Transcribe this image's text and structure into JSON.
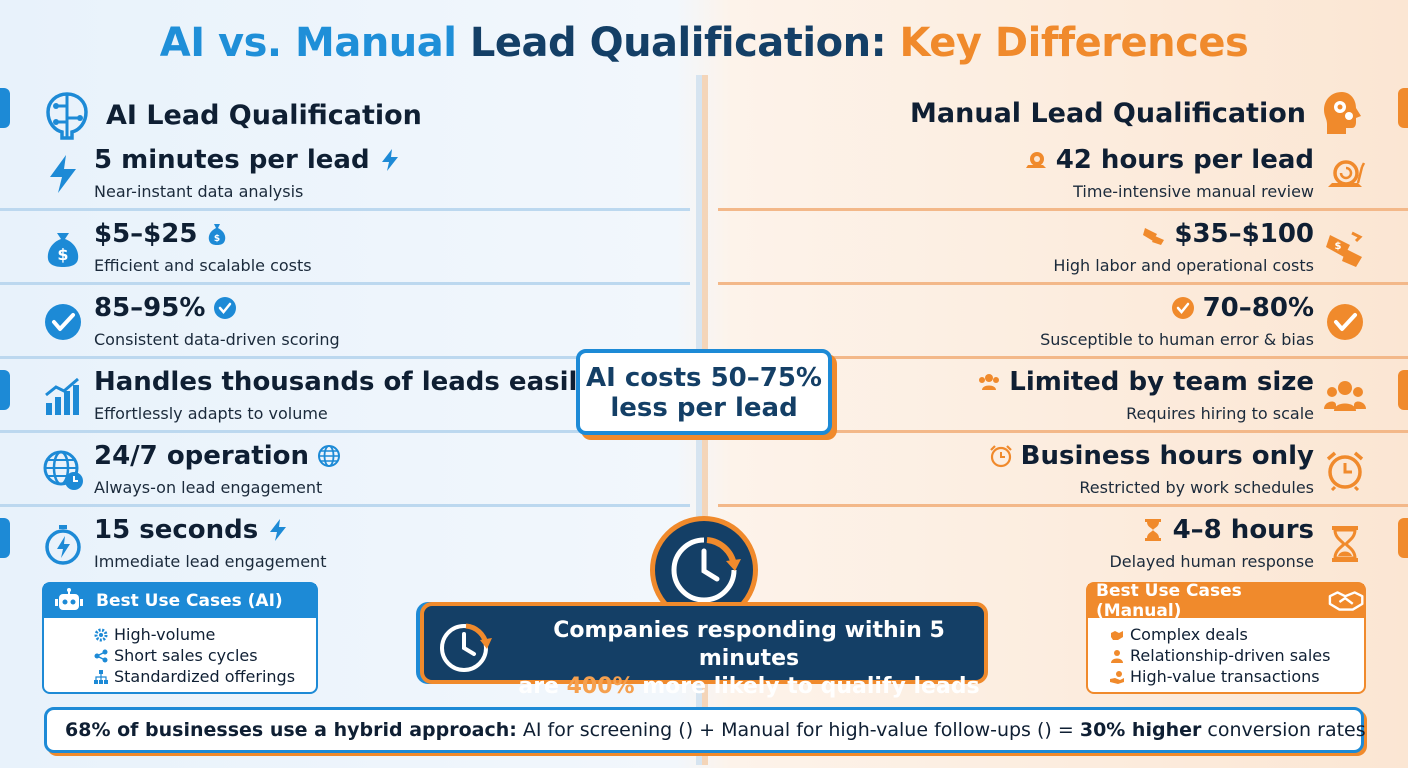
{
  "title": {
    "part1": "AI vs. Manual ",
    "part2": "Lead Qualification: ",
    "part3": "Key Differences"
  },
  "ai": {
    "heading": "AI Lead Qualification",
    "rows": [
      {
        "main": "5 minutes per lead",
        "sub": "Near-instant data analysis",
        "icon": "lightning-icon"
      },
      {
        "main": "$5–$25",
        "sub": "Efficient and scalable costs",
        "icon": "money-bag-icon"
      },
      {
        "main": "85–95%",
        "sub": "Consistent data-driven scoring",
        "icon": "check-circle-icon"
      },
      {
        "main": "Handles thousands of leads easily",
        "sub": "Effortlessly adapts to volume",
        "icon": "bar-chart-icon"
      },
      {
        "main": "24/7 operation",
        "sub": "Always-on lead engagement",
        "icon": "globe-clock-icon"
      },
      {
        "main": "15 seconds",
        "sub": "Immediate lead engagement",
        "icon": "stopwatch-icon"
      }
    ],
    "use_cases": {
      "title": "Best Use Cases (AI)",
      "items": [
        "High-volume",
        "Short sales cycles",
        "Standardized offerings"
      ]
    }
  },
  "manual": {
    "heading": "Manual Lead Qualification",
    "rows": [
      {
        "main": "42 hours per lead",
        "sub": "Time-intensive manual review",
        "icon": "snail-icon"
      },
      {
        "main": "$35–$100",
        "sub": "High labor and operational costs",
        "icon": "money-flying-icon"
      },
      {
        "main": "70–80%",
        "sub": "Susceptible to human error & bias",
        "icon": "check-circle-icon"
      },
      {
        "main": "Limited by team size",
        "sub": "Requires hiring to scale",
        "icon": "team-icon"
      },
      {
        "main": "Business hours only",
        "sub": "Restricted by work schedules",
        "icon": "alarm-clock-icon"
      },
      {
        "main": "4–8 hours",
        "sub": "Delayed human response",
        "icon": "hourglass-icon"
      }
    ],
    "use_cases": {
      "title": "Best Use Cases (Manual)",
      "items": [
        "Complex deals",
        "Relationship-driven sales",
        "High-value transactions"
      ]
    }
  },
  "callout": {
    "line1": "AI costs 50–75%",
    "line2": "less per lead"
  },
  "banner": {
    "line1": "Companies responding within 5 minutes",
    "line2_pre": "are ",
    "line2_hl": "400%",
    "line2_post": " more likely to qualify leads"
  },
  "footer": {
    "bold1": "68% of businesses use a hybrid approach:",
    "text1": " AI for screening (",
    "text2": ") + Manual for high-value follow-ups (",
    "text3": ") = ",
    "bold2": "30% higher",
    "text4": " conversion rates"
  },
  "colors": {
    "ai_blue": "#1d8ad6",
    "navy": "#143f66",
    "manual_orange": "#f08a2c"
  }
}
